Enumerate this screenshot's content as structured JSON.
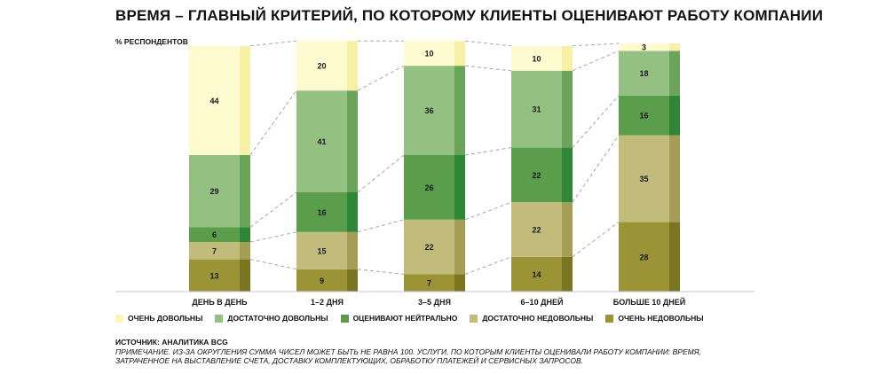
{
  "title": "ВРЕМЯ – ГЛАВНЫЙ КРИТЕРИЙ, ПО КОТОРОМУ КЛИЕНТЫ ОЦЕНИВАЮТ РАБОТУ КОМПАНИИ",
  "source": "ИСТОЧНИК: АНАЛИТИКА BCG",
  "note": "ПРИМЕЧАНИЕ. ИЗ-ЗА ОКРУГЛЕНИЯ СУММА ЧИСЕЛ МОЖЕТ БЫТЬ НЕ РАВНА 100. УСЛУГИ, ПО КОТОРЫМ КЛИЕНТЫ ОЦЕНИВАЛИ РАБОТУ КОМПАНИИ: ВРЕМЯ, ЗАТРАЧЕННОЕ НА ВЫСТАВЛЕНИЕ СЧЕТА, ДОСТАВКУ КОМПЛЕКТУЮЩИХ, ОБРАБОТКУ ПЛАТЕЖЕЙ И СЕРВИСНЫХ ЗАПРОСОВ.",
  "chart_data": {
    "type": "bar",
    "stacked": true,
    "ylabel": "% РЕСПОНДЕНТОВ",
    "ylim": [
      0,
      100
    ],
    "grid": false,
    "legend_position": "bottom",
    "categories": [
      "ДЕНЬ В ДЕНЬ",
      "1–2 ДНЯ",
      "3–5 ДНЯ",
      "6–10 ДНЕЙ",
      "БОЛЬШЕ 10 ДНЕЙ"
    ],
    "series": [
      {
        "name": "ОЧЕНЬ НЕДОВОЛЬНЫ",
        "color": "#9a9437",
        "side_color": "#7a7520",
        "values": [
          13,
          9,
          7,
          14,
          28
        ]
      },
      {
        "name": "ДОСТАТОЧНО НЕДОВОЛЬНЫ",
        "color": "#c2bc7c",
        "side_color": "#a39d55",
        "values": [
          7,
          15,
          22,
          22,
          35
        ]
      },
      {
        "name": "ОЦЕНИВАЮТ НЕЙТРАЛЬНО",
        "color": "#5a9e4c",
        "side_color": "#2e8636",
        "values": [
          6,
          16,
          26,
          22,
          16
        ]
      },
      {
        "name": "ДОСТАТОЧНО ДОВОЛЬНЫ",
        "color": "#94c082",
        "side_color": "#6aa35a",
        "values": [
          29,
          41,
          36,
          31,
          18
        ]
      },
      {
        "name": "ОЧЕНЬ ДОВОЛЬНЫ",
        "color": "#fdfbcf",
        "side_color": "#f7f1a6",
        "values": [
          44,
          20,
          10,
          10,
          3
        ]
      }
    ],
    "legend_order": [
      "ОЧЕНЬ ДОВОЛЬНЫ",
      "ДОСТАТОЧНО ДОВОЛЬНЫ",
      "ОЦЕНИВАЮТ НЕЙТРАЛЬНО",
      "ДОСТАТОЧНО НЕДОВОЛЬНЫ",
      "ОЧЕНЬ НЕДОВОЛЬНЫ"
    ]
  }
}
